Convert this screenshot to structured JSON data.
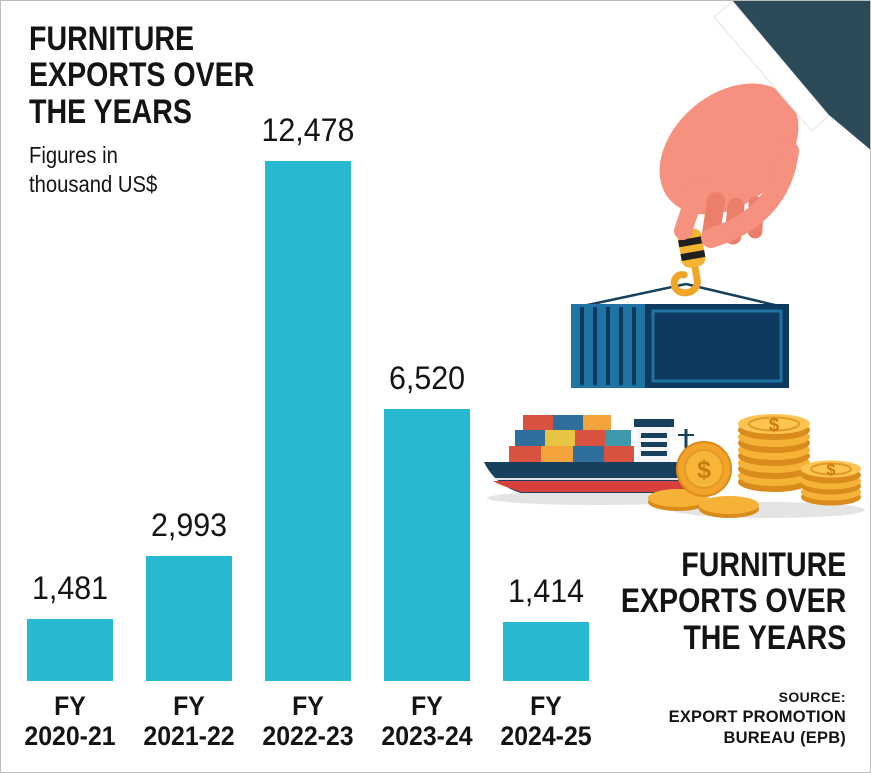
{
  "page": {
    "background": "#ffffff",
    "frame_color": "#bdbdbd"
  },
  "left_title": {
    "lines": [
      "FURNITURE",
      "EXPORTS OVER",
      "THE YEARS"
    ]
  },
  "subtitle": {
    "lines": [
      "Figures in",
      "thousand US$"
    ]
  },
  "chart_data": {
    "type": "bar",
    "title": "FURNITURE EXPORTS OVER THE YEARS",
    "unit_note": "Figures in thousand US$",
    "categories": [
      "FY 2020-21",
      "FY 2021-22",
      "FY 2022-23",
      "FY 2023-24",
      "FY 2024-25"
    ],
    "values": [
      1481,
      2993,
      12478,
      6520,
      1414
    ],
    "value_labels": [
      "1,481",
      "2,993",
      "12,478",
      "6,520",
      "1,414"
    ],
    "bar_color": "#27b8d2",
    "ylim": [
      0,
      12478
    ],
    "grid": false,
    "legend": false,
    "orientation": "vertical"
  },
  "right_title": {
    "lines": [
      "FURNITURE",
      "EXPORTS OVER",
      "THE YEARS"
    ]
  },
  "source": {
    "label": "SOURCE:",
    "lines": [
      "EXPORT PROMOTION",
      "BUREAU (EPB)"
    ]
  },
  "illustration": {
    "coin_symbol": "$",
    "palette": {
      "sleeve": "#2d4a59",
      "skin": "#f5917e",
      "container_dark": "#0e3a60",
      "container_light": "#1f74a3",
      "hull": "#16405e",
      "hull_red": "#d8403c",
      "coin_gold": "#f2a32a",
      "coin_light": "#f6b237",
      "hook_yellow": "#f6b331"
    }
  }
}
